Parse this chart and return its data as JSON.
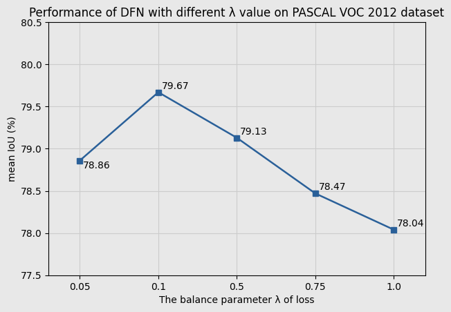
{
  "title": "Performance of DFN with different λ value on PASCAL VOC 2012 dataset",
  "xlabel": "The balance parameter λ of loss",
  "ylabel": "mean IoU (%)",
  "x_labels": [
    "0.05",
    "0.1",
    "0.5",
    "0.75",
    "1.0"
  ],
  "x_positions": [
    0,
    1,
    2,
    3,
    4
  ],
  "y_values": [
    78.86,
    79.67,
    79.13,
    78.47,
    78.04
  ],
  "annotations": [
    "78.86",
    "79.67",
    "79.13",
    "78.47",
    "78.04"
  ],
  "ylim": [
    77.5,
    80.5
  ],
  "line_color": "#2a6099",
  "marker": "s",
  "marker_size": 6,
  "marker_color": "#2a6099",
  "grid_color": "#cccccc",
  "background_color": "#e8e8e8",
  "title_fontsize": 12,
  "label_fontsize": 10,
  "tick_fontsize": 10,
  "annotation_fontsize": 10
}
